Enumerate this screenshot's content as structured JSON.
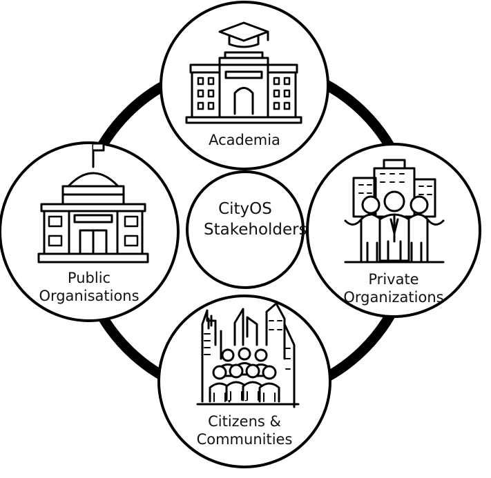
{
  "diagram": {
    "center": {
      "line1": "CityOS",
      "line2": "Stakeholders"
    },
    "nodes": [
      {
        "id": "academia",
        "lines": [
          "Academia"
        ],
        "icon": "university-building-icon"
      },
      {
        "id": "private",
        "lines": [
          "Private",
          "Organizations"
        ],
        "icon": "business-people-icon"
      },
      {
        "id": "citizens",
        "lines": [
          "Citizens &",
          "Communities"
        ],
        "icon": "city-crowd-icon"
      },
      {
        "id": "public",
        "lines": [
          "Public",
          "Organisations"
        ],
        "icon": "government-building-icon"
      }
    ],
    "colors": {
      "stroke": "#000000",
      "fill": "#ffffff",
      "text": "#111111"
    }
  }
}
